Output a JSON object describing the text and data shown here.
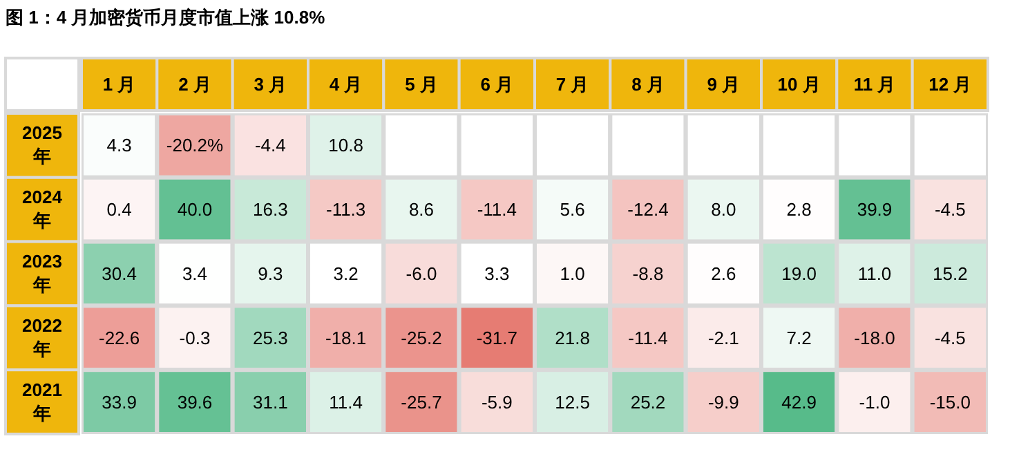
{
  "chart_data": {
    "type": "heatmap",
    "title": "图 1：4 月加密货币月度市值上涨 10.8%",
    "categories": [
      "1 月",
      "2 月",
      "3 月",
      "4 月",
      "5 月",
      "6 月",
      "7 月",
      "8 月",
      "9 月",
      "10 月",
      "11 月",
      "12 月"
    ],
    "y_categories": [
      "2025 年",
      "2024 年",
      "2023 年",
      "2022 年",
      "2021 年"
    ],
    "cells": [
      [
        4.3,
        -20.2,
        -4.4,
        10.8,
        null,
        null,
        null,
        null,
        null,
        null,
        null,
        null
      ],
      [
        0.4,
        40.0,
        16.3,
        -11.3,
        8.6,
        -11.4,
        5.6,
        -12.4,
        8.0,
        2.8,
        39.9,
        -4.5
      ],
      [
        30.4,
        3.4,
        9.3,
        3.2,
        -6.0,
        3.3,
        1.0,
        -8.8,
        2.6,
        19.0,
        11.0,
        15.2
      ],
      [
        -22.6,
        -0.3,
        25.3,
        -18.1,
        -25.2,
        -31.7,
        21.8,
        -11.4,
        -2.1,
        7.2,
        -18.0,
        -4.5
      ],
      [
        33.9,
        39.6,
        31.1,
        11.4,
        -25.7,
        -5.9,
        12.5,
        25.2,
        -9.9,
        42.9,
        -1.0,
        -15.0
      ]
    ],
    "cell_labels": [
      [
        "4.3",
        "-20.2%",
        "-4.4",
        "10.8",
        null,
        null,
        null,
        null,
        null,
        null,
        null,
        null
      ],
      [
        "0.4",
        "40.0",
        "16.3",
        "-11.3",
        "8.6",
        "-11.4",
        "5.6",
        "-12.4",
        "8.0",
        "2.8",
        "39.9",
        "-4.5"
      ],
      [
        "30.4",
        "3.4",
        "9.3",
        "3.2",
        "-6.0",
        "3.3",
        "1.0",
        "-8.8",
        "2.6",
        "19.0",
        "11.0",
        "15.2"
      ],
      [
        "-22.6",
        "-0.3",
        "25.3",
        "-18.1",
        "-25.2",
        "-31.7",
        "21.8",
        "-11.4",
        "-2.1",
        "7.2",
        "-18.0",
        "-4.5"
      ],
      [
        "33.9",
        "39.6",
        "31.1",
        "11.4",
        "-25.7",
        "-5.9",
        "12.5",
        "25.2",
        "-9.9",
        "42.9",
        "-1.0",
        "-15.0"
      ]
    ]
  }
}
